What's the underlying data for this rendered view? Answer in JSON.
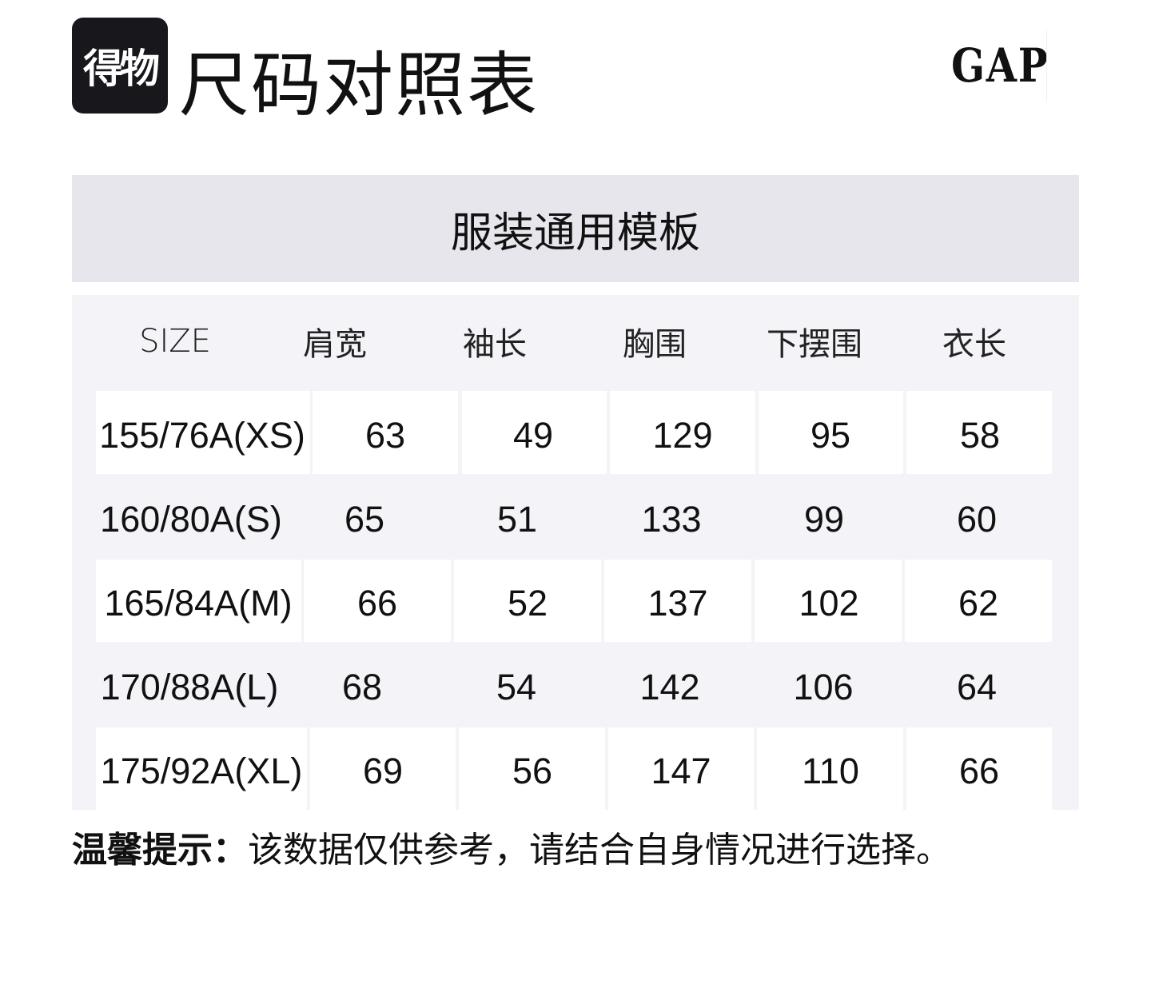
{
  "logo_text": "得物",
  "title": "尺码对照表",
  "brand_logo": "GAP",
  "template_title": "服装通用模板",
  "table": {
    "headers": [
      "SIZE",
      "肩宽",
      "袖长",
      "胸围",
      "下摆围",
      "衣长"
    ],
    "rows": [
      [
        "155/76A(XS)",
        "63",
        "49",
        "129",
        "95",
        "58"
      ],
      [
        "160/80A(S)",
        "65",
        "51",
        "133",
        "99",
        "60"
      ],
      [
        "165/84A(M)",
        "66",
        "52",
        "137",
        "102",
        "62"
      ],
      [
        "170/88A(L)",
        "68",
        "54",
        "142",
        "106",
        "64"
      ],
      [
        "175/92A(XL)",
        "69",
        "56",
        "147",
        "110",
        "66"
      ]
    ]
  },
  "tip": {
    "label": "温馨提示：",
    "text": "该数据仅供参考，请结合自身情况进行选择。"
  }
}
